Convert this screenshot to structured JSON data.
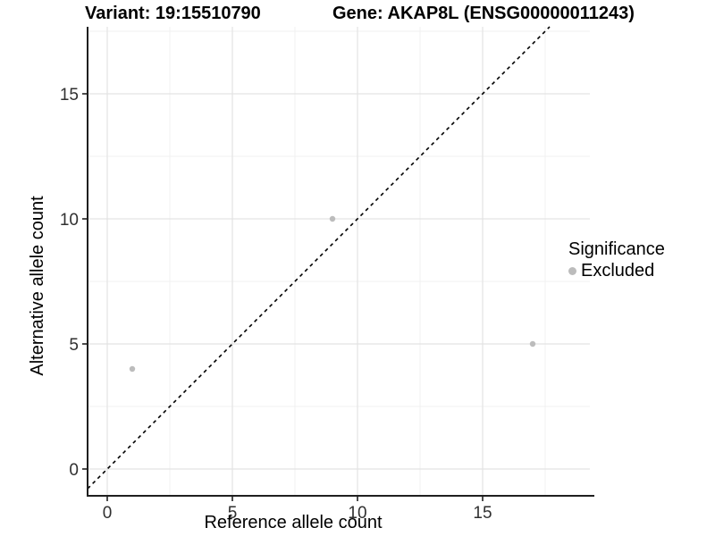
{
  "chart_data": {
    "type": "scatter",
    "title_left": "Variant: 19:15510790",
    "title_right": "Gene: AKAP8L (ENSG00000011243)",
    "xlabel": "Reference allele count",
    "ylabel": "Alternative allele count",
    "x_ticks": [
      0,
      5,
      10,
      15
    ],
    "y_ticks": [
      0,
      5,
      10,
      15
    ],
    "xlim": [
      -0.8,
      19.3
    ],
    "ylim": [
      -1.1,
      17.7
    ],
    "grid": true,
    "identity_line": {
      "style": "dashed",
      "color": "#000000"
    },
    "series": [
      {
        "name": "Excluded",
        "color": "#bcbcbc",
        "marker": "circle",
        "points": [
          [
            1,
            4
          ],
          [
            9,
            10
          ],
          [
            17,
            5
          ]
        ]
      }
    ],
    "legend": {
      "title": "Significance",
      "position": "right",
      "entries": [
        {
          "label": "Excluded",
          "color": "#bcbcbc"
        }
      ]
    },
    "colors": {
      "grid_major": "#e3e3e3",
      "grid_minor": "#f1f1f1",
      "axis": "#1f1f1f",
      "tick_text": "#303030"
    }
  }
}
